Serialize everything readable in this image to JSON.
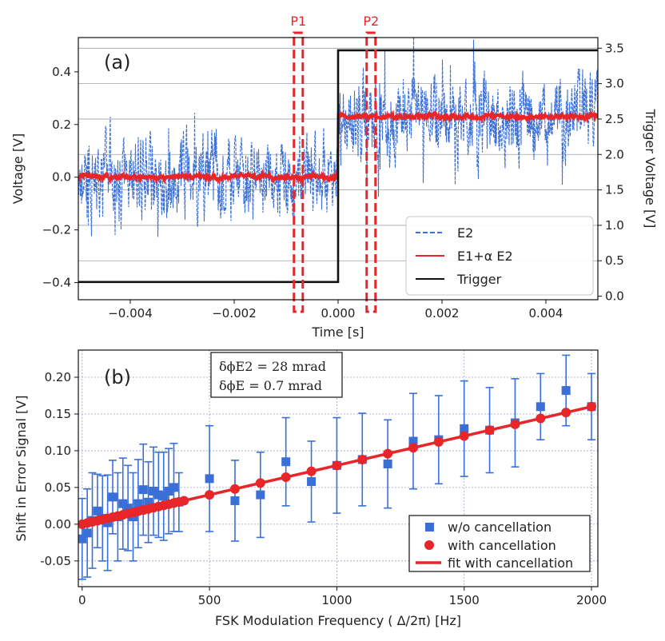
{
  "figure": {
    "panel_a_label": "(a)",
    "panel_b_label": "(b)"
  },
  "colors": {
    "e2": "#3a6fd8",
    "combo": "#e8262a",
    "trigger": "#111111",
    "wo": "#3a6fd8",
    "with": "#e8262a",
    "grid_a": "#9aa0a6",
    "grid_b": "#9aa3c4"
  },
  "chart_data": [
    {
      "type": "line",
      "title": "",
      "panel": "(a)",
      "xlabel": "Time [s]",
      "ylabel": "Voltage [V]",
      "y2label": "Trigger Voltage [V]",
      "xlim": [
        -0.005,
        0.005
      ],
      "ylim": [
        -0.465,
        0.53
      ],
      "y2lim": [
        -0.05,
        3.65
      ],
      "xticks": [
        -0.004,
        -0.002,
        0.0,
        0.002,
        0.004
      ],
      "xtick_labels": [
        "−0.004",
        "−0.002",
        "0.000",
        "0.002",
        "0.004"
      ],
      "yticks": [
        -0.4,
        -0.2,
        0.0,
        0.2,
        0.4
      ],
      "ytick_labels": [
        "−0.4",
        "−0.2",
        "0.0",
        "0.2",
        "0.4"
      ],
      "y2ticks": [
        0.0,
        0.5,
        1.0,
        1.5,
        2.0,
        2.5,
        3.0,
        3.5
      ],
      "y2tick_labels": [
        "0.0",
        "0.5",
        "1.0",
        "1.5",
        "2.0",
        "2.5",
        "3.0",
        "3.5"
      ],
      "series": [
        {
          "name": "E2",
          "style": "dashed",
          "axis": "left",
          "description": "noisy signal: mean 0.0 V for t<0, mean 0.23 V for t>0, fluctuation about ±0.25 V",
          "mean_before": 0.0,
          "mean_after": 0.23,
          "spread": 0.25
        },
        {
          "name": "E1+α E2",
          "style": "solid",
          "axis": "left",
          "description": "cancelled signal: 0.0 V for t<0, 0.23 V for t>0, fluctuation about ±0.03 V",
          "mean_before": 0.0,
          "mean_after": 0.23,
          "spread": 0.03
        },
        {
          "name": "Trigger",
          "style": "solid",
          "axis": "right",
          "x": [
            -0.005,
            0.0,
            0.0,
            0.005
          ],
          "y": [
            0.2,
            0.2,
            3.47,
            3.47
          ]
        }
      ],
      "legend": [
        "E2",
        "E1+α E2",
        "Trigger"
      ],
      "legend_position": "lower-right",
      "annotations": [
        {
          "label": "P1",
          "t_start": -0.00085,
          "t_end": -0.00068
        },
        {
          "label": "P2",
          "t_start": 0.00055,
          "t_end": 0.00072
        }
      ]
    },
    {
      "type": "scatter",
      "title": "",
      "panel": "(b)",
      "xlabel": "FSK Modulation Frequency ( Δ/2π) [Hz]",
      "ylabel": "Shift in Error Signal [V]",
      "xlim": [
        -15,
        2025
      ],
      "ylim": [
        -0.085,
        0.237
      ],
      "xticks": [
        0,
        500,
        1000,
        1500,
        2000
      ],
      "xtick_labels": [
        "0",
        "500",
        "1000",
        "1500",
        "2000"
      ],
      "yticks": [
        -0.05,
        0.0,
        0.05,
        0.1,
        0.15,
        0.2
      ],
      "ytick_labels": [
        "-0.05",
        "0.00",
        "0.05",
        "0.10",
        "0.15",
        "0.20"
      ],
      "grid": true,
      "annotation_box": [
        "δϕE2 = 28 mrad",
        "δϕE = 0.7 mrad"
      ],
      "series": [
        {
          "name": "w/o cancellation",
          "marker": "square",
          "x": [
            0,
            20,
            40,
            60,
            80,
            100,
            120,
            140,
            160,
            180,
            200,
            220,
            240,
            260,
            280,
            300,
            320,
            340,
            360,
            380,
            500,
            600,
            700,
            800,
            900,
            1000,
            1100,
            1200,
            1300,
            1400,
            1500,
            1600,
            1700,
            1800,
            1900,
            2000
          ],
          "y": [
            -0.02,
            -0.012,
            0.005,
            0.018,
            0.008,
            0.002,
            0.037,
            0.01,
            0.028,
            0.022,
            0.01,
            0.028,
            0.047,
            0.03,
            0.045,
            0.04,
            0.038,
            0.045,
            0.05,
            0.03,
            0.062,
            0.032,
            0.04,
            0.085,
            0.058,
            0.08,
            0.088,
            0.082,
            0.113,
            0.115,
            0.13,
            0.128,
            0.138,
            0.16,
            0.182,
            0.16
          ],
          "err": [
            0.055,
            0.06,
            0.065,
            0.05,
            0.058,
            0.065,
            0.05,
            0.06,
            0.062,
            0.058,
            0.06,
            0.06,
            0.062,
            0.055,
            0.06,
            0.058,
            0.06,
            0.058,
            0.06,
            0.04,
            0.072,
            0.055,
            0.058,
            0.06,
            0.055,
            0.065,
            0.063,
            0.06,
            0.065,
            0.06,
            0.065,
            0.058,
            0.06,
            0.045,
            0.048,
            0.045
          ]
        },
        {
          "name": "with cancellation",
          "marker": "circle",
          "x": [
            0,
            20,
            40,
            60,
            80,
            100,
            120,
            140,
            160,
            180,
            200,
            220,
            240,
            260,
            280,
            300,
            320,
            340,
            360,
            380,
            400,
            500,
            600,
            700,
            800,
            900,
            1000,
            1100,
            1200,
            1300,
            1400,
            1500,
            1600,
            1700,
            1800,
            1900,
            2000
          ],
          "y": [
            0.0,
            0.0016,
            0.0032,
            0.0048,
            0.0064,
            0.008,
            0.0096,
            0.0112,
            0.0128,
            0.0144,
            0.016,
            0.0176,
            0.0192,
            0.0208,
            0.0224,
            0.024,
            0.0256,
            0.0272,
            0.0288,
            0.0304,
            0.032,
            0.04,
            0.048,
            0.056,
            0.064,
            0.072,
            0.08,
            0.088,
            0.096,
            0.104,
            0.112,
            0.12,
            0.128,
            0.136,
            0.144,
            0.152,
            0.16
          ]
        },
        {
          "name": "fit with cancellation",
          "marker": "line",
          "x": [
            0,
            2000
          ],
          "y": [
            0.0,
            0.16
          ]
        }
      ],
      "legend": [
        "w/o cancellation",
        "with cancellation",
        "fit with cancellation"
      ],
      "legend_position": "lower-right"
    }
  ]
}
